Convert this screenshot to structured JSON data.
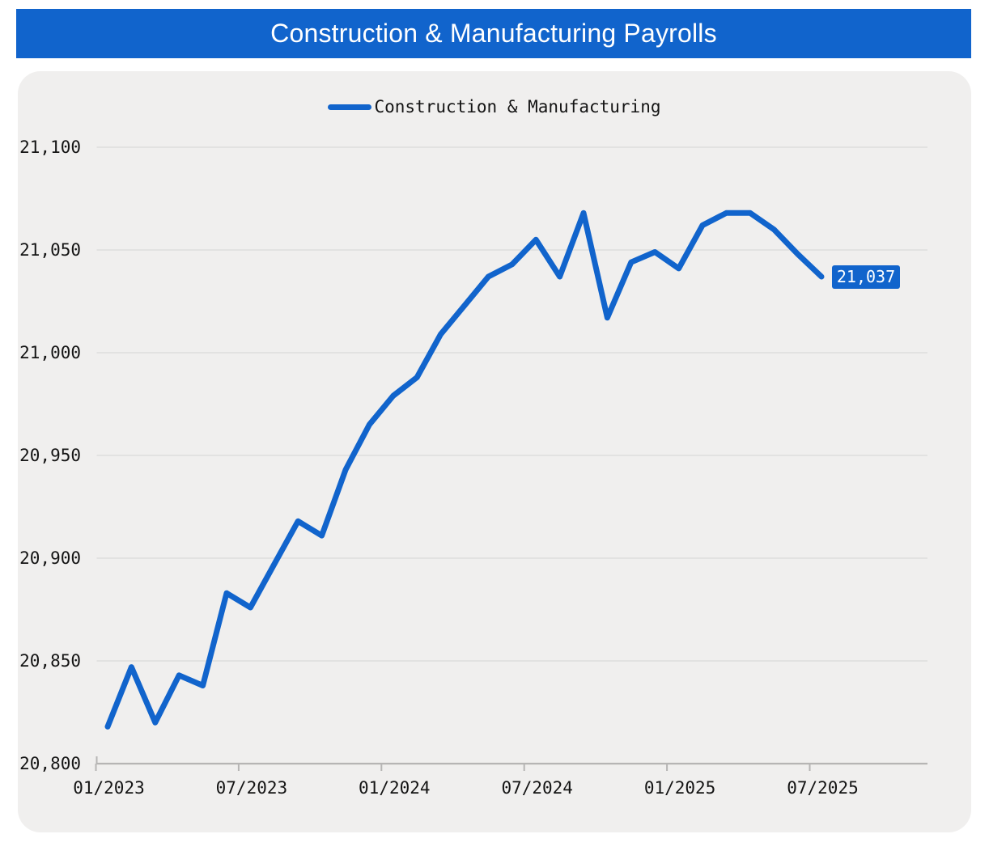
{
  "header": {
    "title": "Construction & Manufacturing Payrolls"
  },
  "legend": {
    "label": "Construction & Manufacturing"
  },
  "colors": {
    "accent": "#1164cc",
    "card_bg": "#f0efee",
    "grid": "#e1e0df",
    "axis": "#b6b5b4",
    "text": "#141414",
    "label_text": "#ffffff"
  },
  "chart_data": {
    "type": "line",
    "title": "Construction & Manufacturing Payrolls",
    "xlabel": "",
    "ylabel": "",
    "ylim": [
      20800,
      21100
    ],
    "grid": true,
    "legend_position": "top-center",
    "x_tick_labels": [
      "01/2023",
      "07/2023",
      "01/2024",
      "07/2024",
      "01/2025",
      "07/2025"
    ],
    "x_tick_month_indices": [
      0,
      6,
      12,
      18,
      24,
      30
    ],
    "y_ticks": [
      20800,
      20850,
      20900,
      20950,
      21000,
      21050,
      21100
    ],
    "y_tick_labels": [
      "20,800",
      "20,850",
      "20,900",
      "20,950",
      "21,000",
      "21,050",
      "21,100"
    ],
    "months": [
      "01/2023",
      "02/2023",
      "03/2023",
      "04/2023",
      "05/2023",
      "06/2023",
      "07/2023",
      "08/2023",
      "09/2023",
      "10/2023",
      "11/2023",
      "12/2023",
      "01/2024",
      "02/2024",
      "03/2024",
      "04/2024",
      "05/2024",
      "06/2024",
      "07/2024",
      "08/2024",
      "09/2024",
      "10/2024",
      "11/2024",
      "12/2024",
      "01/2025",
      "02/2025",
      "03/2025",
      "04/2025",
      "05/2025",
      "06/2025",
      "07/2025"
    ],
    "series": [
      {
        "name": "Construction & Manufacturing",
        "color": "#1164cc",
        "values": [
          20818,
          20847,
          20820,
          20843,
          20838,
          20883,
          20876,
          20897,
          20918,
          20911,
          20943,
          20965,
          20979,
          20988,
          21009,
          21023,
          21037,
          21043,
          21055,
          21037,
          21068,
          21017,
          21044,
          21049,
          21041,
          21062,
          21068,
          21068,
          21060,
          21048,
          21037
        ]
      }
    ],
    "last_value_label": "21,037"
  }
}
